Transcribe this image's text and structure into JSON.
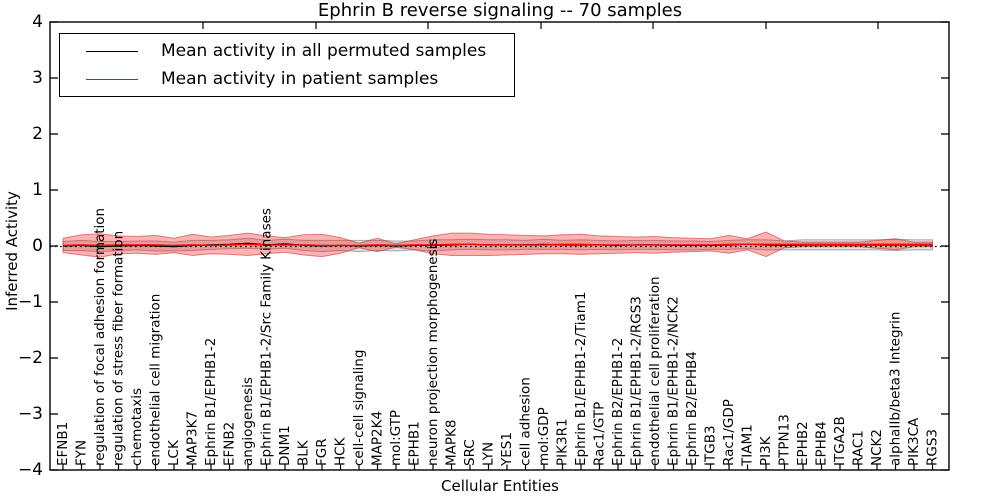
{
  "chart_data": {
    "type": "line",
    "title": "Ephrin B reverse signaling -- 70 samples",
    "xlabel": "Cellular Entities",
    "ylabel": "Inferred Activity",
    "ylim": [
      -4,
      4
    ],
    "yticks": [
      4,
      3,
      2,
      1,
      0,
      -1,
      -2,
      -3,
      -4
    ],
    "ytick_labels": [
      "4",
      "3",
      "2",
      "1",
      "0",
      "−1",
      "−2",
      "−3",
      "−4"
    ],
    "grid": false,
    "legend_position": "upper-left",
    "legend": [
      {
        "label": "Mean activity in all permuted samples",
        "color": "#000000"
      },
      {
        "label": "Mean activity in patient samples",
        "color": "#ff0000"
      }
    ],
    "categories": [
      "EFNB1",
      "FYN",
      "regulation of focal adhesion formation",
      "regulation of stress fiber formation",
      "chemotaxis",
      "endothelial cell migration",
      "LCK",
      "MAP3K7",
      "Ephrin B1/EPHB1-2",
      "EFNB2",
      "angiogenesis",
      "Ephrin B1/EPHB1-2/Src Family Kinases",
      "DNM1",
      "BLK",
      "FGR",
      "HCK",
      "cell-cell signaling",
      "MAP2K4",
      "mol:GTP",
      "EPHB1",
      "neuron projection morphogenesis",
      "MAPK8",
      "SRC",
      "LYN",
      "YES1",
      "cell adhesion",
      "mol:GDP",
      "PIK3R1",
      "Ephrin B1/EPHB1-2/Tiam1",
      "Rac1/GTP",
      "Ephrin B2/EPHB1-2",
      "Ephrin B1/EPHB1-2/RGS3",
      "endothelial cell proliferation",
      "Ephrin B1/EPHB1-2/NCK2",
      "Ephrin B2/EPHB4",
      "ITGB3",
      "Rac1/GDP",
      "TIAM1",
      "PI3K",
      "PTPN13",
      "EPHB2",
      "EPHB4",
      "ITGA2B",
      "RAC1",
      "NCK2",
      "alphaIIb/beta3 Integrin",
      "PIK3CA",
      "RGS3"
    ],
    "series": [
      {
        "name": "Mean activity in all permuted samples",
        "color": "#000000",
        "style": "solid",
        "values": [
          0.0,
          0.01,
          -0.01,
          0.0,
          0.01,
          0.0,
          -0.01,
          0.01,
          0.02,
          0.03,
          0.05,
          0.02,
          0.04,
          0.01,
          0.0,
          0.01,
          0.0,
          0.01,
          0.0,
          0.01,
          0.01,
          0.02,
          0.03,
          0.02,
          0.02,
          0.02,
          0.03,
          0.02,
          0.02,
          0.02,
          0.01,
          0.02,
          0.02,
          0.01,
          0.01,
          0.01,
          0.02,
          0.03,
          0.02,
          0.01,
          0.02,
          0.02,
          0.02,
          0.02,
          0.02,
          0.02,
          0.02,
          0.02
        ]
      },
      {
        "name": "Mean activity in patient samples",
        "color": "#ff0000",
        "style": "solid",
        "values": [
          0.01,
          0.02,
          0.01,
          0.02,
          0.02,
          0.02,
          0.01,
          0.02,
          0.01,
          0.02,
          0.03,
          0.02,
          0.02,
          0.02,
          0.01,
          0.01,
          0.01,
          0.02,
          0.01,
          0.02,
          0.02,
          0.03,
          0.03,
          0.02,
          0.02,
          0.02,
          0.02,
          0.03,
          0.03,
          0.02,
          0.02,
          0.02,
          0.02,
          0.02,
          0.02,
          0.02,
          0.03,
          0.03,
          0.03,
          0.03,
          0.03,
          0.03,
          0.03,
          0.03,
          0.03,
          0.03,
          0.03,
          0.03
        ]
      }
    ],
    "bands": [
      {
        "name": "permuted-samples-std-band",
        "fill": "rgba(0,0,0,0.13)",
        "edge": "rgba(110,110,110,0.55)",
        "center_series": 0,
        "half_widths": [
          0.08,
          0.09,
          0.09,
          0.08,
          0.08,
          0.09,
          0.08,
          0.09,
          0.08,
          0.08,
          0.09,
          0.08,
          0.08,
          0.09,
          0.1,
          0.09,
          0.1,
          0.09,
          0.09,
          0.08,
          0.1,
          0.09,
          0.09,
          0.09,
          0.09,
          0.08,
          0.09,
          0.08,
          0.09,
          0.08,
          0.08,
          0.08,
          0.08,
          0.08,
          0.08,
          0.07,
          0.08,
          0.08,
          0.09,
          0.08,
          0.09,
          0.09,
          0.09,
          0.09,
          0.09,
          0.1,
          0.09,
          0.09
        ]
      },
      {
        "name": "patient-samples-std-band",
        "fill": "rgba(255,0,0,0.30)",
        "edge": "rgba(200,40,40,0.55)",
        "center_series": 1,
        "half_widths": [
          0.13,
          0.18,
          0.21,
          0.16,
          0.15,
          0.17,
          0.13,
          0.19,
          0.15,
          0.17,
          0.2,
          0.16,
          0.13,
          0.18,
          0.2,
          0.14,
          0.04,
          0.12,
          0.03,
          0.09,
          0.16,
          0.2,
          0.2,
          0.19,
          0.18,
          0.17,
          0.16,
          0.17,
          0.18,
          0.16,
          0.15,
          0.14,
          0.15,
          0.13,
          0.12,
          0.11,
          0.16,
          0.1,
          0.22,
          0.06,
          0.04,
          0.04,
          0.04,
          0.04,
          0.07,
          0.1,
          0.04,
          0.04
        ]
      }
    ],
    "zero_line": {
      "value": 0,
      "style": "dotted",
      "color": "#000000"
    }
  }
}
